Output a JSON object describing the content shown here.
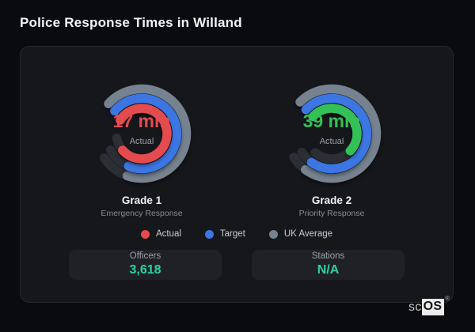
{
  "page": {
    "title": "Police Response Times in Willand",
    "background": "#0a0b0e",
    "card_background": "#16171b"
  },
  "colors": {
    "actual_red": "#e44b4e",
    "actual_green": "#33c157",
    "target_blue": "#3b76e3",
    "uk_average_slate": "#76828f",
    "track": "#2b2e34",
    "stat_teal": "#2bd3a2"
  },
  "chart_data": [
    {
      "type": "gauge",
      "name": "Grade 1",
      "sublabel": "Emergency Response",
      "center_label": "17 min",
      "center_sublabel": "Actual",
      "value_color": "#e44b4e",
      "layout": {
        "size": 150,
        "stroke_width": 11.5,
        "track_color": "#2b2e34"
      },
      "rings": [
        {
          "name": "UK Average",
          "color": "#76828f",
          "radius": 56.5,
          "start_deg": -48,
          "sweep_deg": 247,
          "track_sweep_deg": 285
        },
        {
          "name": "Target",
          "color": "#3b76e3",
          "radius": 44.5,
          "start_deg": -50,
          "sweep_deg": 252,
          "track_sweep_deg": 292
        },
        {
          "name": "Actual",
          "color": "#e44b4e",
          "radius": 32,
          "start_deg": -58,
          "sweep_deg": 287,
          "track_sweep_deg": 318
        }
      ]
    },
    {
      "type": "gauge",
      "name": "Grade 2",
      "sublabel": "Priority Response",
      "center_label": "39 min",
      "center_sublabel": "Actual",
      "value_color": "#33c157",
      "layout": {
        "size": 150,
        "stroke_width": 11.5,
        "track_color": "#2b2e34"
      },
      "rings": [
        {
          "name": "UK Average",
          "color": "#76828f",
          "radius": 56.5,
          "start_deg": -45,
          "sweep_deg": 261,
          "track_sweep_deg": 283
        },
        {
          "name": "Target",
          "color": "#3b76e3",
          "radius": 44.5,
          "start_deg": -47,
          "sweep_deg": 262,
          "track_sweep_deg": 285
        },
        {
          "name": "Actual",
          "color": "#33c157",
          "radius": 32,
          "start_deg": -48,
          "sweep_deg": 181,
          "track_sweep_deg": 269
        }
      ]
    }
  ],
  "legend": [
    {
      "label": "Actual",
      "color": "#e44b4e"
    },
    {
      "label": "Target",
      "color": "#3b76e3"
    },
    {
      "label": "UK Average",
      "color": "#76828f"
    }
  ],
  "stats": [
    {
      "label": "Officers",
      "value": "3,618"
    },
    {
      "label": "Stations",
      "value": "N/A"
    }
  ],
  "logo": {
    "prefix": "sc",
    "suffix": "OS",
    "registered": "®"
  }
}
